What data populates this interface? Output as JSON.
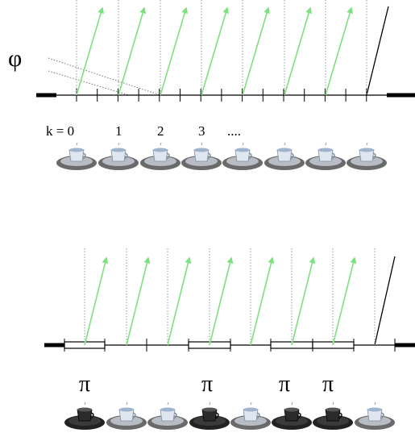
{
  "phi_label": "φ",
  "index_labels": [
    "k = 0",
    "1",
    "2",
    "3",
    "...."
  ],
  "pi_labels": [
    "π",
    "π",
    "π",
    "π"
  ]
}
